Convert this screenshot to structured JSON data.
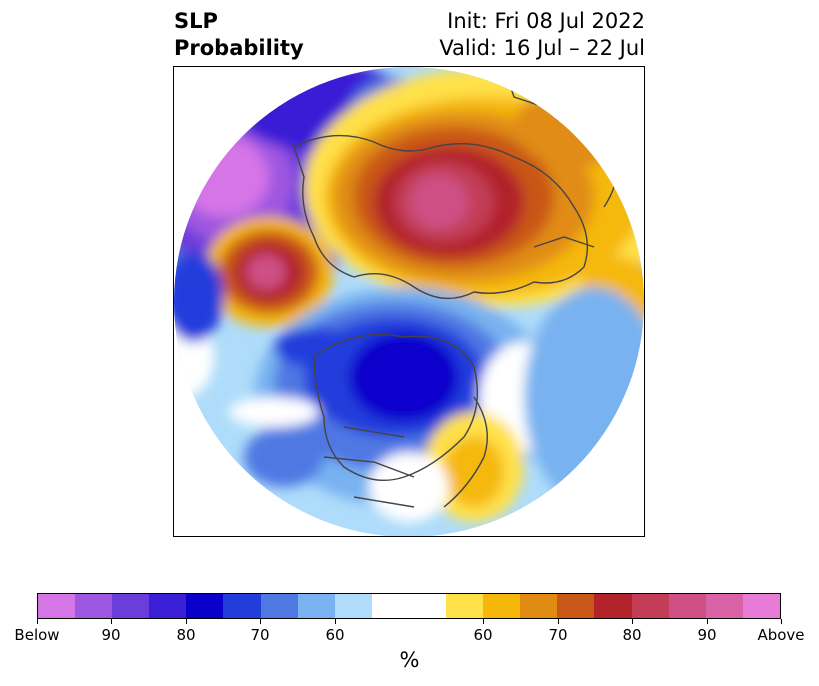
{
  "title": {
    "left_line1": "SLP",
    "left_line2": "Probability",
    "right_line1": "Init: Fri 08 Jul 2022",
    "right_line2": "Valid: 16 Jul – 22 Jul"
  },
  "colorbar": {
    "colors": [
      "#d675e6",
      "#9e57e0",
      "#6b3ddb",
      "#3a1fd6",
      "#0a00cc",
      "#233ddb",
      "#4f78e3",
      "#78b2f0",
      "#aedcfa",
      "#ffffff",
      "#ffffff",
      "#ffe14a",
      "#f5b80a",
      "#e08c12",
      "#c95718",
      "#b2242a",
      "#c23d55",
      "#ce5084",
      "#d963a6",
      "#e87ad8"
    ],
    "tick_labels": [
      "Below",
      "90",
      "80",
      "70",
      "60",
      "60",
      "70",
      "80",
      "90",
      "Above"
    ],
    "unit": "%"
  },
  "map": {
    "projection": "north-polar stereographic",
    "variable": "sea-level pressure probability"
  }
}
